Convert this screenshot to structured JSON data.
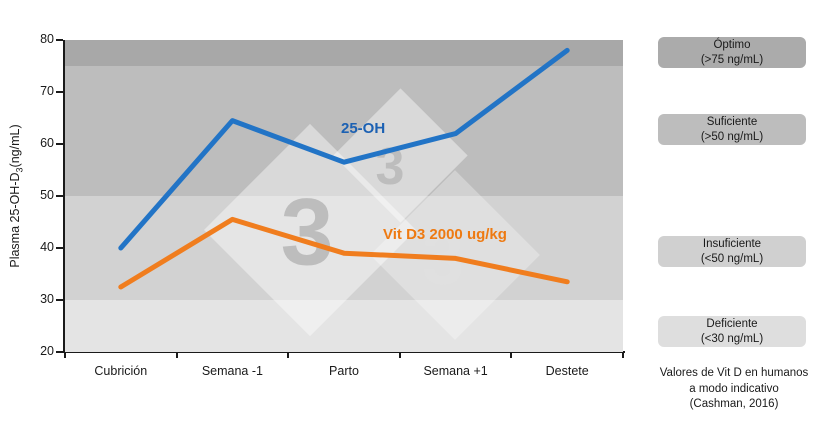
{
  "chart_data": {
    "type": "line",
    "title": "",
    "categories": [
      "Cubrición",
      "Semana -1",
      "Parto",
      "Semana +1",
      "Destete"
    ],
    "series": [
      {
        "name": "25-OH",
        "values": [
          40,
          64.5,
          56.5,
          62,
          78
        ],
        "color": "#2274c6",
        "label_color": "#1c61b3"
      },
      {
        "name": "Vit D3 2000 ug/kg",
        "values": [
          32.5,
          45.5,
          39,
          38,
          33.5
        ],
        "color": "#f07d1e",
        "label_color": "#ee7a12"
      }
    ],
    "xlabel": "",
    "ylabel": "Plasma 25-OH-D3(ng/mL)",
    "ylim": [
      20,
      80
    ],
    "ytick_step": 10,
    "grid": false,
    "legend_position": "inline-labels",
    "zones": [
      {
        "label": "Óptimo",
        "range": "(>75 ng/mL)",
        "from": 75,
        "to": 80,
        "band_color": "#a8a8a8",
        "box_color": "#ababab"
      },
      {
        "label": "Suficiente",
        "range": "(>50 ng/mL)",
        "from": 50,
        "to": 75,
        "band_color": "#bdbdbd",
        "box_color": "#bdbdbd"
      },
      {
        "label": "Insuficiente",
        "range": "(<50 ng/mL)",
        "from": 30,
        "to": 50,
        "band_color": "#d2d2d2",
        "box_color": "#d0d0d0"
      },
      {
        "label": "Deficiente",
        "range": "(<30 ng/mL)",
        "from": 20,
        "to": 30,
        "band_color": "#e4e4e4",
        "box_color": "#dedede"
      }
    ]
  },
  "y_axis": {
    "title_main": "Plasma 25-OH-D",
    "title_sub": "3",
    "title_unit": "(ng/mL)"
  },
  "footnote": {
    "line1": "Valores de Vit D en humanos",
    "line2": "a modo indicativo",
    "line3": "(Cashman, 2016)"
  },
  "watermark": {
    "digit": "3"
  }
}
